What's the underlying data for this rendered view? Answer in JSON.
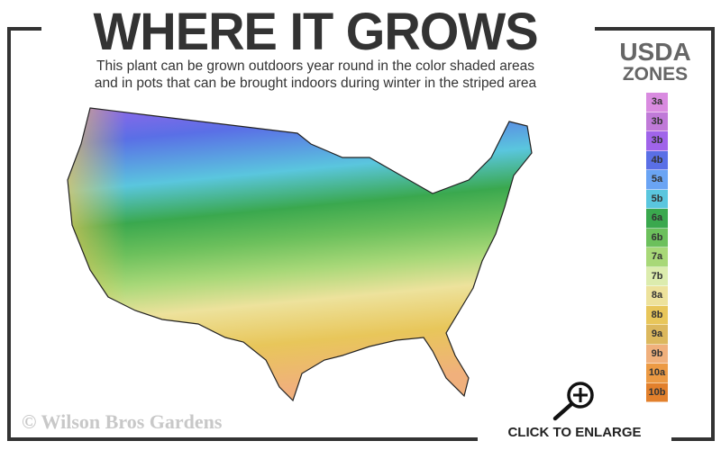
{
  "header": {
    "title": "WHERE IT GROWS",
    "subtitle_line1": "This plant can be grown outdoors year round in the color shaded areas",
    "subtitle_line2": "and in pots that can be brought indoors during winter in the striped area"
  },
  "legend": {
    "title_line1": "USDA",
    "title_line2": "ZONES",
    "zones": [
      {
        "label": "3a",
        "color": "#d98be0"
      },
      {
        "label": "3b",
        "color": "#c07ad8"
      },
      {
        "label": "3b",
        "color": "#a064ea"
      },
      {
        "label": "4b",
        "color": "#5a6fe6"
      },
      {
        "label": "5a",
        "color": "#6aa4f4"
      },
      {
        "label": "5b",
        "color": "#5ac6de"
      },
      {
        "label": "6a",
        "color": "#3aa84e"
      },
      {
        "label": "6b",
        "color": "#6cc05c"
      },
      {
        "label": "7a",
        "color": "#a8d878"
      },
      {
        "label": "7b",
        "color": "#dcecae"
      },
      {
        "label": "8a",
        "color": "#ede29c"
      },
      {
        "label": "8b",
        "color": "#e8c65a"
      },
      {
        "label": "9a",
        "color": "#dcb85e"
      },
      {
        "label": "9b",
        "color": "#f0b07c"
      },
      {
        "label": "10a",
        "color": "#ec9a44"
      },
      {
        "label": "10b",
        "color": "#e2802c"
      }
    ]
  },
  "footer": {
    "copyright": "© Wilson Bros Gardens",
    "enlarge_label": "CLICK TO ENLARGE",
    "enlarge_icon": "zoom-in-icon"
  }
}
